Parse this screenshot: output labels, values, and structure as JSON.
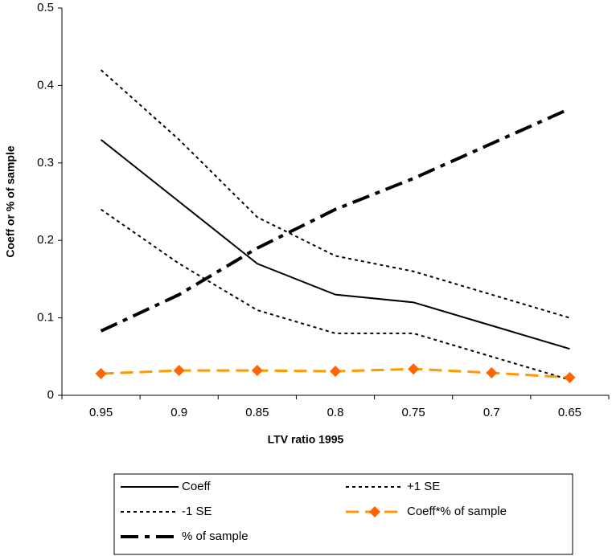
{
  "chart_data": {
    "type": "line",
    "x_label": "LTV ratio 1995",
    "y_label": "Coeff or % of sample",
    "categories": [
      "0.95",
      "0.9",
      "0.85",
      "0.8",
      "0.75",
      "0.7",
      "0.65"
    ],
    "ylim": [
      0,
      0.5
    ],
    "yticks": [
      0,
      0.1,
      0.2,
      0.3,
      0.4,
      0.5
    ],
    "series": [
      {
        "name": "Coeff",
        "color": "#000000",
        "values": [
          0.33,
          0.25,
          0.17,
          0.13,
          0.12,
          0.09,
          0.06
        ]
      },
      {
        "name": "+1 SE",
        "color": "#000000",
        "values": [
          0.42,
          0.33,
          0.23,
          0.18,
          0.16,
          0.13,
          0.1
        ]
      },
      {
        "name": "-1 SE",
        "color": "#000000",
        "values": [
          0.24,
          0.17,
          0.11,
          0.08,
          0.08,
          0.05,
          0.02
        ]
      },
      {
        "name": "Coeff*% of sample",
        "color": "#ff9900",
        "marker": "diamond",
        "marker_color": "#ff6600",
        "values": [
          0.028,
          0.032,
          0.032,
          0.031,
          0.034,
          0.029,
          0.023
        ]
      },
      {
        "name": "% of sample",
        "color": "#000000",
        "values": [
          0.083,
          0.13,
          0.19,
          0.24,
          0.28,
          0.325,
          0.37
        ]
      }
    ]
  }
}
